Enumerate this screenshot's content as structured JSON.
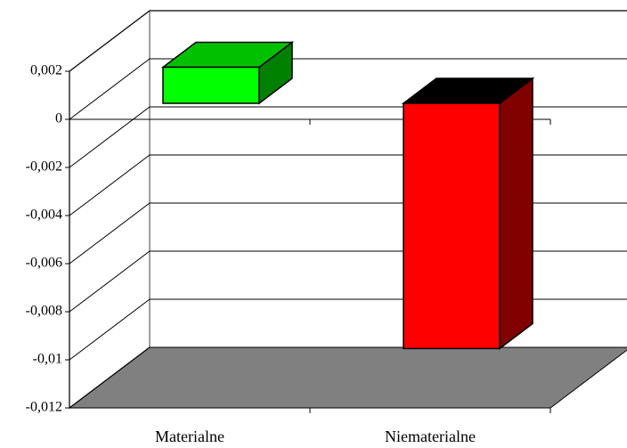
{
  "chart_data": {
    "type": "bar3d",
    "categories": [
      "Materialne",
      "Niematerialne"
    ],
    "values": [
      0.0015,
      -0.0102
    ],
    "colors": [
      "#00ff00",
      "#ff0000"
    ],
    "top_colors": [
      "#00c000",
      "#000000"
    ],
    "side_colors": [
      "#008000",
      "#800000"
    ],
    "ylim": [
      -0.012,
      0.002
    ],
    "yticks": [
      {
        "value": 0.002,
        "label": "0,002"
      },
      0,
      {
        "value": -0.002,
        "label": "-0,002"
      },
      {
        "value": -0.004,
        "label": "-0,004"
      },
      {
        "value": -0.006,
        "label": "-0,006"
      },
      {
        "value": -0.008,
        "label": "-0,008"
      },
      {
        "value": -0.01,
        "label": "-0,01"
      },
      {
        "value": -0.012,
        "label": "-0,012"
      }
    ],
    "grid": true,
    "floor_color": "#808080"
  }
}
